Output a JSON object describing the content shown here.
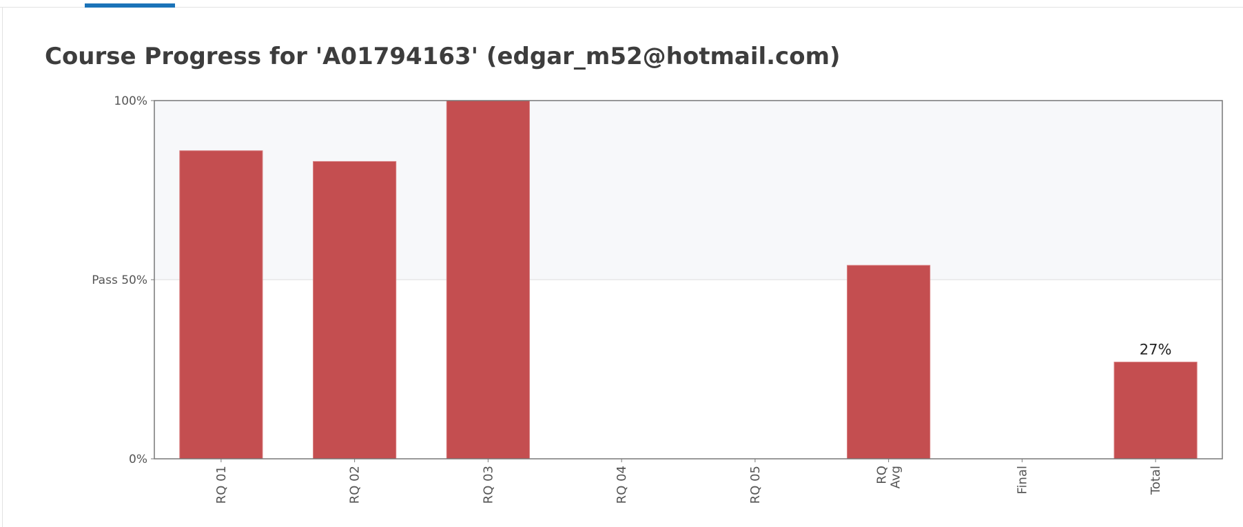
{
  "page": {
    "title": "Course Progress for 'A01794163' (edgar_m52@hotmail.com)"
  },
  "chart_data": {
    "type": "bar",
    "title": "",
    "xlabel": "",
    "ylabel": "",
    "categories": [
      "RQ 01",
      "RQ 02",
      "RQ 03",
      "RQ 04",
      "RQ 05",
      "RQ Avg",
      "Final",
      "Total"
    ],
    "category_lines": [
      [
        "RQ 01"
      ],
      [
        "RQ 02"
      ],
      [
        "RQ 03"
      ],
      [
        "RQ 04"
      ],
      [
        "RQ 05"
      ],
      [
        "RQ",
        "Avg"
      ],
      [
        "Final"
      ],
      [
        "Total"
      ]
    ],
    "values": [
      86,
      83,
      100,
      0,
      0,
      54,
      0,
      27
    ],
    "data_labels": [
      "",
      "",
      "",
      "",
      "",
      "",
      "",
      "27%"
    ],
    "ylim": [
      0,
      100
    ],
    "y_ticks": [
      {
        "value": 0,
        "label": "0%"
      },
      {
        "value": 50,
        "label": "Pass 50%"
      },
      {
        "value": 100,
        "label": "100%"
      }
    ],
    "pass_threshold": 50,
    "tick_label_rotation": "vertical",
    "grid": false,
    "legend": "none",
    "colors": {
      "bar": "#c44e50",
      "bar_edge": "#d77a7c",
      "pass_band": "#f7f8fa",
      "axis": "#777777"
    }
  }
}
